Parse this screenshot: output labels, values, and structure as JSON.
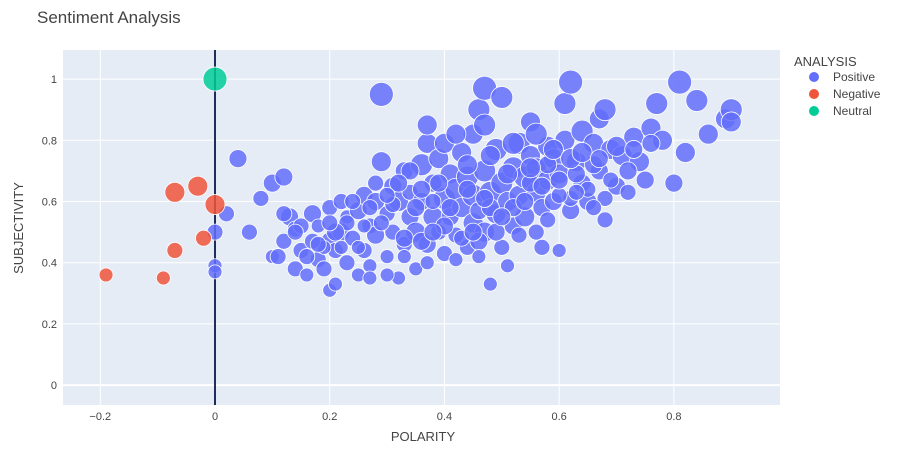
{
  "chart_data": {
    "type": "scatter",
    "title": "Sentiment Analysis",
    "xlabel": "POLARITY",
    "ylabel": "SUBJECTIVITY",
    "xlim": [
      -0.265,
      0.985
    ],
    "ylim": [
      -0.065,
      1.095
    ],
    "xticks": [
      {
        "value": -0.2,
        "label": "−0.2"
      },
      {
        "value": 0,
        "label": "0"
      },
      {
        "value": 0.2,
        "label": "0.2"
      },
      {
        "value": 0.4,
        "label": "0.4"
      },
      {
        "value": 0.6,
        "label": "0.6"
      },
      {
        "value": 0.8,
        "label": "0.8"
      }
    ],
    "yticks": [
      {
        "value": 0,
        "label": "0"
      },
      {
        "value": 0.2,
        "label": "0.2"
      },
      {
        "value": 0.4,
        "label": "0.4"
      },
      {
        "value": 0.6,
        "label": "0.6"
      },
      {
        "value": 0.8,
        "label": "0.8"
      },
      {
        "value": 1,
        "label": "1"
      }
    ],
    "vline_x": 0,
    "grid": true,
    "legend_title": "ANALYSIS",
    "legend_position": "top-right",
    "series": [
      {
        "name": "Positive",
        "color": "#636efa",
        "points": [
          [
            0.04,
            0.74,
            9
          ],
          [
            0.06,
            0.5,
            8
          ],
          [
            0.08,
            0.61,
            8
          ],
          [
            0.1,
            0.42,
            7
          ],
          [
            0.1,
            0.66,
            9
          ],
          [
            0.12,
            0.68,
            9
          ],
          [
            0.12,
            0.47,
            8
          ],
          [
            0.13,
            0.55,
            9
          ],
          [
            0.14,
            0.38,
            8
          ],
          [
            0.14,
            0.51,
            8
          ],
          [
            0.15,
            0.44,
            8
          ],
          [
            0.16,
            0.36,
            7
          ],
          [
            0.17,
            0.56,
            9
          ],
          [
            0.18,
            0.41,
            8
          ],
          [
            0.18,
            0.52,
            7
          ],
          [
            0.19,
            0.38,
            8
          ],
          [
            0.2,
            0.47,
            9
          ],
          [
            0.2,
            0.31,
            7
          ],
          [
            0.2,
            0.58,
            8
          ],
          [
            0.21,
            0.44,
            8
          ],
          [
            0.22,
            0.6,
            8
          ],
          [
            0.22,
            0.5,
            9
          ],
          [
            0.23,
            0.55,
            7
          ],
          [
            0.23,
            0.4,
            8
          ],
          [
            0.24,
            0.48,
            8
          ],
          [
            0.25,
            0.57,
            9
          ],
          [
            0.25,
            0.36,
            7
          ],
          [
            0.26,
            0.62,
            9
          ],
          [
            0.26,
            0.44,
            8
          ],
          [
            0.27,
            0.52,
            8
          ],
          [
            0.27,
            0.39,
            7
          ],
          [
            0.28,
            0.6,
            9
          ],
          [
            0.28,
            0.49,
            9
          ],
          [
            0.29,
            0.73,
            10
          ],
          [
            0.29,
            0.95,
            12
          ],
          [
            0.3,
            0.56,
            8
          ],
          [
            0.3,
            0.42,
            7
          ],
          [
            0.31,
            0.65,
            9
          ],
          [
            0.31,
            0.5,
            8
          ],
          [
            0.32,
            0.35,
            7
          ],
          [
            0.32,
            0.6,
            10
          ],
          [
            0.33,
            0.7,
            9
          ],
          [
            0.33,
            0.46,
            8
          ],
          [
            0.34,
            0.55,
            9
          ],
          [
            0.34,
            0.63,
            8
          ],
          [
            0.35,
            0.5,
            10
          ],
          [
            0.35,
            0.38,
            7
          ],
          [
            0.36,
            0.72,
            11
          ],
          [
            0.36,
            0.6,
            9
          ],
          [
            0.37,
            0.79,
            10
          ],
          [
            0.37,
            0.46,
            9
          ],
          [
            0.37,
            0.85,
            10
          ],
          [
            0.38,
            0.55,
            10
          ],
          [
            0.38,
            0.66,
            9
          ],
          [
            0.39,
            0.5,
            8
          ],
          [
            0.39,
            0.74,
            10
          ],
          [
            0.4,
            0.61,
            11
          ],
          [
            0.4,
            0.43,
            8
          ],
          [
            0.4,
            0.79,
            10
          ],
          [
            0.41,
            0.55,
            9
          ],
          [
            0.41,
            0.69,
            10
          ],
          [
            0.42,
            0.49,
            8
          ],
          [
            0.42,
            0.64,
            11
          ],
          [
            0.43,
            0.58,
            10
          ],
          [
            0.43,
            0.76,
            10
          ],
          [
            0.44,
            0.45,
            8
          ],
          [
            0.44,
            0.68,
            11
          ],
          [
            0.45,
            0.53,
            10
          ],
          [
            0.45,
            0.62,
            11
          ],
          [
            0.45,
            0.82,
            10
          ],
          [
            0.46,
            0.9,
            11
          ],
          [
            0.46,
            0.57,
            9
          ],
          [
            0.47,
            0.7,
            11
          ],
          [
            0.47,
            0.5,
            10
          ],
          [
            0.47,
            0.97,
            12
          ],
          [
            0.48,
            0.63,
            11
          ],
          [
            0.48,
            0.33,
            7
          ],
          [
            0.49,
            0.77,
            11
          ],
          [
            0.49,
            0.56,
            10
          ],
          [
            0.5,
            0.66,
            11
          ],
          [
            0.5,
            0.45,
            8
          ],
          [
            0.5,
            0.94,
            11
          ],
          [
            0.51,
            0.6,
            10
          ],
          [
            0.51,
            0.39,
            7
          ],
          [
            0.52,
            0.71,
            11
          ],
          [
            0.52,
            0.52,
            9
          ],
          [
            0.53,
            0.79,
            11
          ],
          [
            0.53,
            0.62,
            10
          ],
          [
            0.54,
            0.68,
            11
          ],
          [
            0.54,
            0.55,
            10
          ],
          [
            0.55,
            0.75,
            10
          ],
          [
            0.55,
            0.86,
            10
          ],
          [
            0.56,
            0.63,
            10
          ],
          [
            0.56,
            0.71,
            10
          ],
          [
            0.57,
            0.45,
            8
          ],
          [
            0.57,
            0.58,
            9
          ],
          [
            0.58,
            0.67,
            10
          ],
          [
            0.58,
            0.78,
            10
          ],
          [
            0.59,
            0.6,
            9
          ],
          [
            0.59,
            0.74,
            10
          ],
          [
            0.6,
            0.44,
            7
          ],
          [
            0.6,
            0.69,
            10
          ],
          [
            0.61,
            0.8,
            10
          ],
          [
            0.61,
            0.92,
            11
          ],
          [
            0.62,
            0.99,
            12
          ],
          [
            0.62,
            0.57,
            9
          ],
          [
            0.63,
            0.73,
            10
          ],
          [
            0.64,
            0.66,
            9
          ],
          [
            0.64,
            0.83,
            11
          ],
          [
            0.65,
            0.6,
            9
          ],
          [
            0.66,
            0.79,
            10
          ],
          [
            0.67,
            0.87,
            10
          ],
          [
            0.67,
            0.7,
            9
          ],
          [
            0.68,
            0.54,
            8
          ],
          [
            0.68,
            0.9,
            11
          ],
          [
            0.69,
            0.77,
            10
          ],
          [
            0.7,
            0.65,
            9
          ],
          [
            0.71,
            0.75,
            10
          ],
          [
            0.72,
            0.63,
            8
          ],
          [
            0.73,
            0.81,
            10
          ],
          [
            0.74,
            0.73,
            10
          ],
          [
            0.75,
            0.67,
            9
          ],
          [
            0.76,
            0.84,
            10
          ],
          [
            0.77,
            0.92,
            11
          ],
          [
            0.78,
            0.8,
            10
          ],
          [
            0.8,
            0.66,
            9
          ],
          [
            0.81,
            0.99,
            12
          ],
          [
            0.82,
            0.76,
            10
          ],
          [
            0.84,
            0.93,
            11
          ],
          [
            0.86,
            0.82,
            10
          ],
          [
            0.89,
            0.87,
            10
          ],
          [
            0.9,
            0.9,
            11
          ],
          [
            0.9,
            0.86,
            10
          ],
          [
            0.0,
            0.5,
            8
          ],
          [
            0.0,
            0.39,
            7
          ],
          [
            0.0,
            0.37,
            7
          ],
          [
            0.02,
            0.56,
            8
          ],
          [
            0.48,
            0.75,
            10
          ],
          [
            0.44,
            0.72,
            10
          ],
          [
            0.52,
            0.79,
            11
          ],
          [
            0.56,
            0.82,
            11
          ],
          [
            0.47,
            0.85,
            11
          ],
          [
            0.42,
            0.82,
            10
          ],
          [
            0.38,
            0.6,
            8
          ],
          [
            0.35,
            0.58,
            9
          ],
          [
            0.33,
            0.48,
            9
          ],
          [
            0.31,
            0.59,
            8
          ],
          [
            0.29,
            0.53,
            8
          ],
          [
            0.27,
            0.58,
            8
          ],
          [
            0.25,
            0.45,
            7
          ],
          [
            0.23,
            0.53,
            8
          ],
          [
            0.21,
            0.5,
            9
          ],
          [
            0.19,
            0.45,
            7
          ],
          [
            0.17,
            0.47,
            8
          ],
          [
            0.15,
            0.52,
            8
          ],
          [
            0.36,
            0.47,
            9
          ],
          [
            0.4,
            0.52,
            9
          ],
          [
            0.43,
            0.48,
            8
          ],
          [
            0.46,
            0.47,
            9
          ],
          [
            0.49,
            0.5,
            9
          ],
          [
            0.53,
            0.49,
            8
          ],
          [
            0.56,
            0.5,
            8
          ],
          [
            0.58,
            0.54,
            8
          ],
          [
            0.62,
            0.61,
            8
          ],
          [
            0.65,
            0.64,
            8
          ],
          [
            0.68,
            0.61,
            8
          ],
          [
            0.44,
            0.64,
            9
          ],
          [
            0.48,
            0.58,
            9
          ],
          [
            0.52,
            0.58,
            9
          ],
          [
            0.55,
            0.66,
            9
          ],
          [
            0.58,
            0.72,
            9
          ],
          [
            0.6,
            0.62,
            8
          ],
          [
            0.63,
            0.69,
            9
          ],
          [
            0.66,
            0.72,
            9
          ],
          [
            0.69,
            0.67,
            8
          ],
          [
            0.72,
            0.7,
            9
          ],
          [
            0.41,
            0.58,
            9
          ],
          [
            0.39,
            0.66,
            9
          ],
          [
            0.36,
            0.64,
            9
          ],
          [
            0.34,
            0.7,
            9
          ],
          [
            0.32,
            0.66,
            9
          ],
          [
            0.3,
            0.62,
            8
          ],
          [
            0.28,
            0.66,
            8
          ],
          [
            0.26,
            0.52,
            7
          ],
          [
            0.24,
            0.6,
            8
          ],
          [
            0.22,
            0.45,
            7
          ],
          [
            0.2,
            0.53,
            8
          ],
          [
            0.18,
            0.46,
            8
          ],
          [
            0.16,
            0.42,
            8
          ],
          [
            0.14,
            0.5,
            8
          ],
          [
            0.12,
            0.56,
            8
          ],
          [
            0.11,
            0.42,
            8
          ],
          [
            0.33,
            0.42,
            7
          ],
          [
            0.37,
            0.4,
            7
          ],
          [
            0.42,
            0.41,
            7
          ],
          [
            0.46,
            0.42,
            7
          ],
          [
            0.3,
            0.36,
            7
          ],
          [
            0.27,
            0.35,
            7
          ],
          [
            0.21,
            0.33,
            7
          ],
          [
            0.38,
            0.5,
            9
          ],
          [
            0.45,
            0.5,
            9
          ],
          [
            0.5,
            0.55,
            9
          ],
          [
            0.54,
            0.6,
            9
          ],
          [
            0.57,
            0.65,
            9
          ],
          [
            0.6,
            0.67,
            9
          ],
          [
            0.63,
            0.63,
            8
          ],
          [
            0.66,
            0.58,
            8
          ],
          [
            0.47,
            0.61,
            9
          ],
          [
            0.51,
            0.69,
            10
          ],
          [
            0.55,
            0.71,
            10
          ],
          [
            0.59,
            0.77,
            10
          ],
          [
            0.62,
            0.74,
            10
          ],
          [
            0.64,
            0.76,
            10
          ],
          [
            0.67,
            0.74,
            9
          ],
          [
            0.7,
            0.78,
            10
          ],
          [
            0.73,
            0.77,
            9
          ],
          [
            0.76,
            0.79,
            9
          ]
        ]
      },
      {
        "name": "Negative",
        "color": "#ef553b",
        "points": [
          [
            -0.19,
            0.36,
            7
          ],
          [
            -0.09,
            0.35,
            7
          ],
          [
            -0.07,
            0.44,
            8
          ],
          [
            -0.07,
            0.63,
            10
          ],
          [
            -0.03,
            0.65,
            10
          ],
          [
            -0.02,
            0.48,
            8
          ],
          [
            -0.0,
            0.59,
            10
          ]
        ]
      },
      {
        "name": "Neutral",
        "color": "#00cc96",
        "points": [
          [
            0.0,
            1.0,
            12
          ]
        ]
      }
    ]
  }
}
